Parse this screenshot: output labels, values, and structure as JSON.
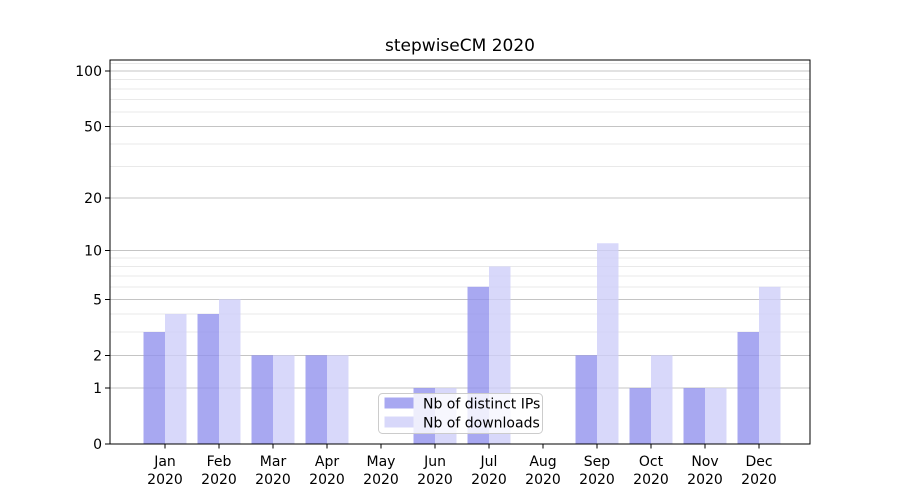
{
  "chart_data": {
    "type": "bar",
    "title": "stepwiseCM 2020",
    "year": "2020",
    "months": [
      "Jan",
      "Feb",
      "Mar",
      "Apr",
      "May",
      "Jun",
      "Jul",
      "Aug",
      "Sep",
      "Oct",
      "Nov",
      "Dec"
    ],
    "categories": [
      "Jan 2020",
      "Feb 2020",
      "Mar 2020",
      "Apr 2020",
      "May 2020",
      "Jun 2020",
      "Jul 2020",
      "Aug 2020",
      "Sep 2020",
      "Oct 2020",
      "Nov 2020",
      "Dec 2020"
    ],
    "series": [
      {
        "name": "Nb of distinct IPs",
        "color": "#9292ee",
        "values": [
          3,
          4,
          2,
          2,
          0,
          1,
          6,
          0,
          2,
          1,
          1,
          3
        ]
      },
      {
        "name": "Nb of downloads",
        "color": "#cecef9",
        "values": [
          4,
          5,
          2,
          2,
          0,
          1,
          8,
          0,
          11,
          2,
          1,
          6
        ]
      }
    ],
    "y_scale": "log1p",
    "ylim": [
      0,
      115
    ],
    "y_major_ticks": [
      0,
      1,
      2,
      5,
      10,
      20,
      50,
      100
    ],
    "y_minor_gridlines": [
      3,
      4,
      6,
      7,
      8,
      9,
      30,
      40,
      60,
      70,
      80,
      90,
      110
    ],
    "grid": true,
    "legend_position": "lower-center",
    "colors": {
      "axis": "#000000",
      "major_grid": "#c4c4c4",
      "minor_grid": "#e9e9e9",
      "background": "#ffffff",
      "legend_border": "#cccccc"
    }
  }
}
